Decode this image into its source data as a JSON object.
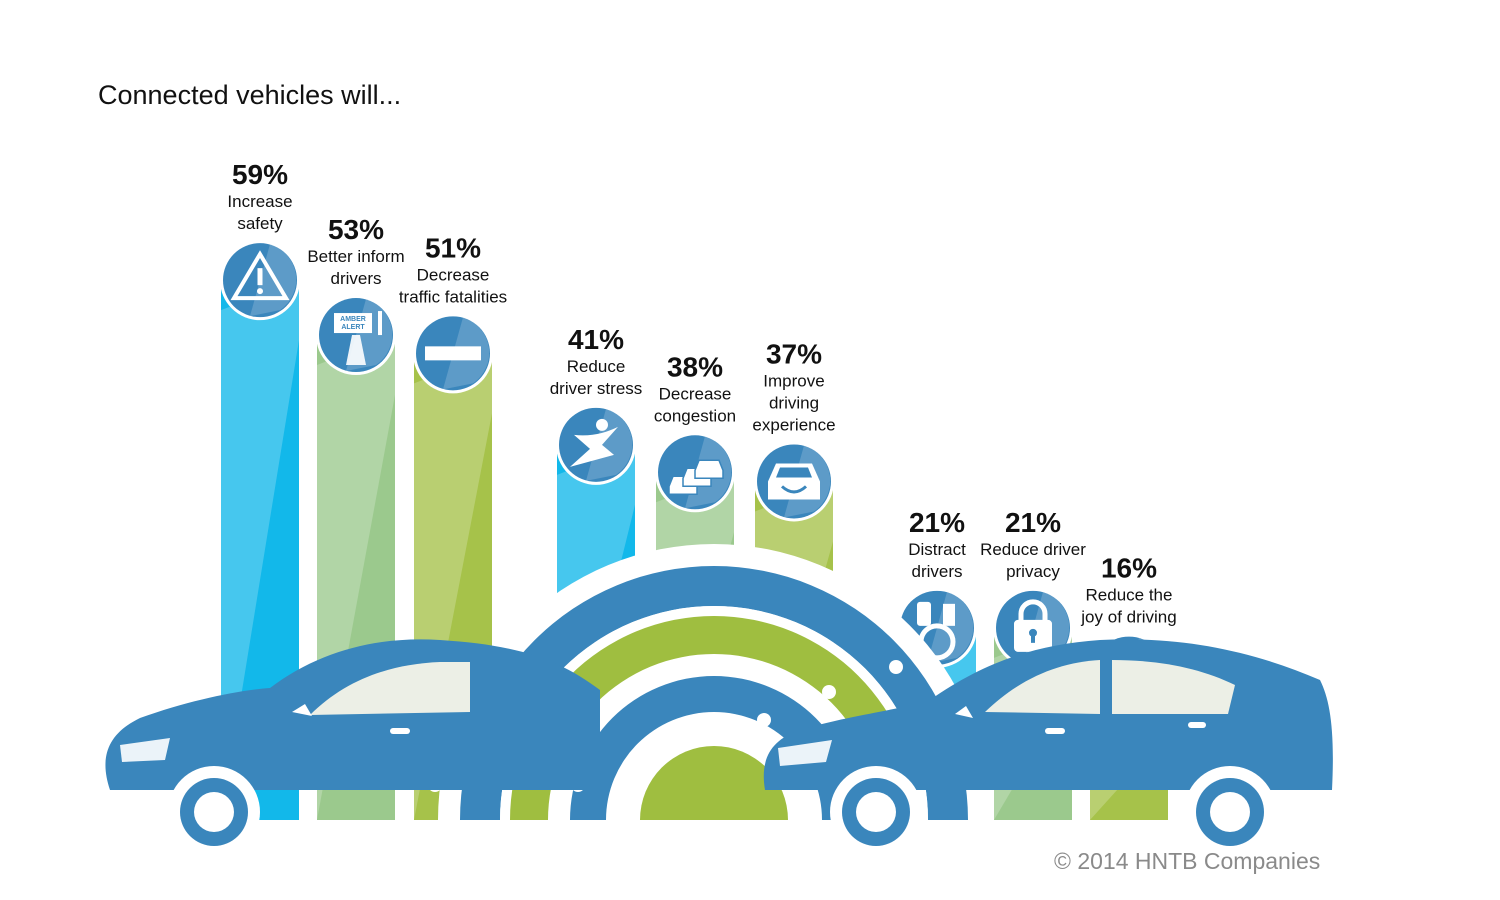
{
  "title": "Connected vehicles will...",
  "copyright": "© 2014 HNTB Companies",
  "colors": {
    "blue_bar": "#12b8ea",
    "green_bar_light": "#9bc98d",
    "green_bar": "#a6c24a",
    "icon_blue": "#3a86bc",
    "car_blue": "#3a86bc",
    "arc_green": "#9fbe40"
  },
  "chart_data": {
    "type": "bar",
    "unit": "%",
    "title": "Connected vehicles will...",
    "categories": [
      "Increase safety",
      "Better inform drivers",
      "Decrease traffic fatalities",
      "Reduce driver stress",
      "Decrease congestion",
      "Improve driving experience",
      "Distract drivers",
      "Reduce driver privacy",
      "Reduce the joy of driving"
    ],
    "values": [
      59,
      53,
      51,
      41,
      38,
      37,
      21,
      21,
      16
    ],
    "value_labels": [
      "59%",
      "53%",
      "51%",
      "41%",
      "38%",
      "37%",
      "21%",
      "21%",
      "16%"
    ],
    "label_lines": [
      [
        "Increase",
        "safety"
      ],
      [
        "Better inform",
        "drivers"
      ],
      [
        "Decrease",
        "traffic fatalities"
      ],
      [
        "Reduce",
        "driver stress"
      ],
      [
        "Decrease",
        "congestion"
      ],
      [
        "Improve",
        "driving",
        "experience"
      ],
      [
        "Distract",
        "drivers"
      ],
      [
        "Reduce driver",
        "privacy"
      ],
      [
        "Reduce the",
        "joy of driving"
      ]
    ],
    "icons": [
      "warning-icon",
      "amber-alert-icon",
      "no-entry-icon",
      "runner-icon",
      "traffic-icon",
      "smiling-car-icon",
      "distraction-icon",
      "padlock-icon",
      "winding-road-icon"
    ],
    "bar_colors": [
      "#12b8ea",
      "#9bc98d",
      "#a6c24a",
      "#12b8ea",
      "#9bc98d",
      "#a6c24a",
      "#12b8ea",
      "#9bc98d",
      "#a6c24a"
    ],
    "ylim": [
      0,
      59
    ],
    "grid": false,
    "legend": "none"
  }
}
